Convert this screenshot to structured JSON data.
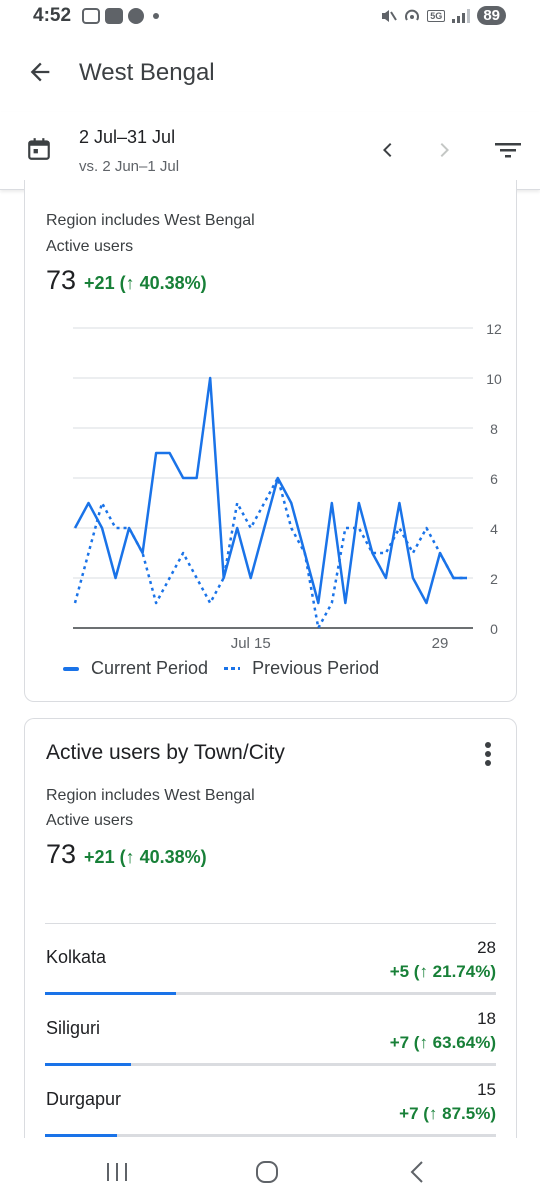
{
  "status_bar": {
    "time": "4:52",
    "network": "5G",
    "battery": "89"
  },
  "app_bar": {
    "title": "West Bengal",
    "back_icon": "arrow-back-icon"
  },
  "date_range": {
    "current": "2 Jul–31 Jul",
    "comparison": "vs. 2 Jun–1 Jul",
    "icons": [
      "calendar-icon",
      "chevron-left-icon",
      "chevron-right-icon",
      "filter-icon"
    ]
  },
  "chart_card": {
    "filter_text": "Region includes West Bengal",
    "metric_label": "Active users",
    "metric_value": "73",
    "metric_delta": "+21 (↑ 40.38%)",
    "legend_current": "Current Period",
    "legend_previous": "Previous Period"
  },
  "chart_data": {
    "type": "line",
    "x_tick_labels": [
      "Jul 15",
      "29"
    ],
    "x_tick_days": [
      15,
      29
    ],
    "x": [
      2,
      3,
      4,
      5,
      6,
      7,
      8,
      9,
      10,
      11,
      12,
      13,
      14,
      15,
      16,
      17,
      18,
      19,
      20,
      21,
      22,
      23,
      24,
      25,
      26,
      27,
      28,
      29,
      30,
      31
    ],
    "ylim": [
      0,
      12
    ],
    "y_ticks": [
      "0",
      "2",
      "4",
      "6",
      "8",
      "10",
      "12"
    ],
    "y_tick_values": [
      0,
      2,
      4,
      6,
      8,
      10,
      12
    ],
    "grid": true,
    "legend_position": "bottom",
    "series": [
      {
        "name": "Current Period",
        "style": "solid",
        "color": "#1a73e8",
        "values": [
          4,
          5,
          4,
          2,
          4,
          3,
          7,
          7,
          6,
          6,
          10,
          2,
          4,
          2,
          4,
          6,
          5,
          3,
          1,
          5,
          1,
          5,
          3,
          2,
          5,
          2,
          1,
          3,
          2,
          2
        ]
      },
      {
        "name": "Previous Period",
        "style": "dashed",
        "color": "#1a73e8",
        "values": [
          1,
          3,
          5,
          4,
          4,
          3,
          1,
          2,
          3,
          2,
          1,
          2,
          5,
          4,
          5,
          6,
          4,
          3,
          0,
          1,
          4,
          4,
          3,
          3,
          4,
          3,
          4,
          3,
          2,
          2
        ]
      }
    ]
  },
  "city_card": {
    "title": "Active users by Town/City",
    "more_icon": "more-vert-icon",
    "filter_text": "Region includes West Bengal",
    "metric_label": "Active users",
    "metric_value": "73",
    "metric_delta": "+21 (↑ 40.38%)",
    "rows": [
      {
        "city": "Kolkata",
        "value": "28",
        "delta": "+5 (↑ 21.74%)",
        "share": 0.29
      },
      {
        "city": "Siliguri",
        "value": "18",
        "delta": "+7 (↑ 63.64%)",
        "share": 0.19
      },
      {
        "city": "Durgapur",
        "value": "15",
        "delta": "+7 (↑ 87.5%)",
        "share": 0.16
      }
    ]
  },
  "nav_bar": {
    "icons": [
      "recents-icon",
      "home-icon",
      "back-icon"
    ]
  },
  "colors": {
    "accent": "#1a73e8",
    "positive": "#188038",
    "divider": "#dadce0"
  }
}
